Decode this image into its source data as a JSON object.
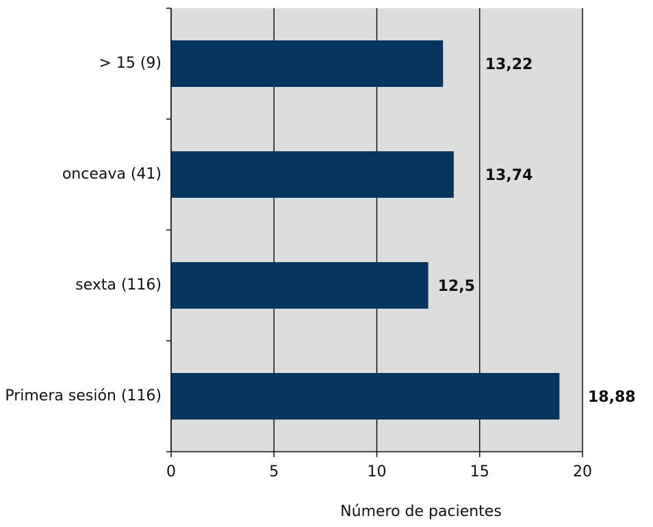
{
  "chart_data": {
    "type": "bar",
    "orientation": "horizontal",
    "categories": [
      "> 15 (9)",
      "onceava (41)",
      "sexta (116)",
      "Primera sesión (116)"
    ],
    "values": [
      13.22,
      13.74,
      12.5,
      18.88
    ],
    "value_labels": [
      "13,22",
      "13,74",
      "12,5",
      "18,88"
    ],
    "color": "#06365f",
    "background": "#dcdddd",
    "xlabel": "Número de pacientes",
    "xlim": [
      0,
      20
    ],
    "xticks": [
      0,
      5,
      10,
      15,
      20
    ],
    "grid": true
  }
}
